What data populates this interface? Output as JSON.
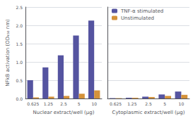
{
  "chart_data": [
    {
      "type": "bar",
      "categories": [
        "0.625",
        "1.25",
        "2.5",
        "5",
        "10"
      ],
      "series": [
        {
          "name": "TNF-α stimulated",
          "color": "#5554A0",
          "values": [
            0.5,
            0.85,
            1.18,
            1.72,
            2.13
          ]
        },
        {
          "name": "Unstimulated",
          "color": "#D4923A",
          "values": [
            0.03,
            0.05,
            0.07,
            0.13,
            0.22
          ]
        }
      ],
      "xlabel": "Nuclear extract/well (μg)",
      "ylabel": "NFkB activation (OD₄₅₀ nm)",
      "ylim": [
        0,
        2.5
      ],
      "yticks": [
        {
          "value": 0,
          "label": "0.0"
        },
        0.5,
        {
          "value": 1,
          "label": "1.0"
        },
        1.5,
        {
          "value": 2,
          "label": "2.0"
        },
        2.5
      ],
      "grid": true
    },
    {
      "type": "bar",
      "categories": [
        "0.625",
        "1.25",
        "2.5",
        "5",
        "10"
      ],
      "series": [
        {
          "name": "TNF-α stimulated",
          "color": "#5554A0",
          "values": [
            0.01,
            0.02,
            0.05,
            0.11,
            0.19
          ]
        },
        {
          "name": "Unstimulated",
          "color": "#D4923A",
          "values": [
            0.01,
            0.02,
            0.04,
            0.07,
            0.1
          ]
        }
      ],
      "xlabel": "Cytoplasmic extract/well (μg)",
      "ylim": [
        0,
        2.5
      ],
      "yticks": [
        0,
        0.5,
        1,
        1.5,
        2,
        2.5
      ],
      "tick_labels": "x",
      "legend": "upper left",
      "grid": true
    }
  ]
}
